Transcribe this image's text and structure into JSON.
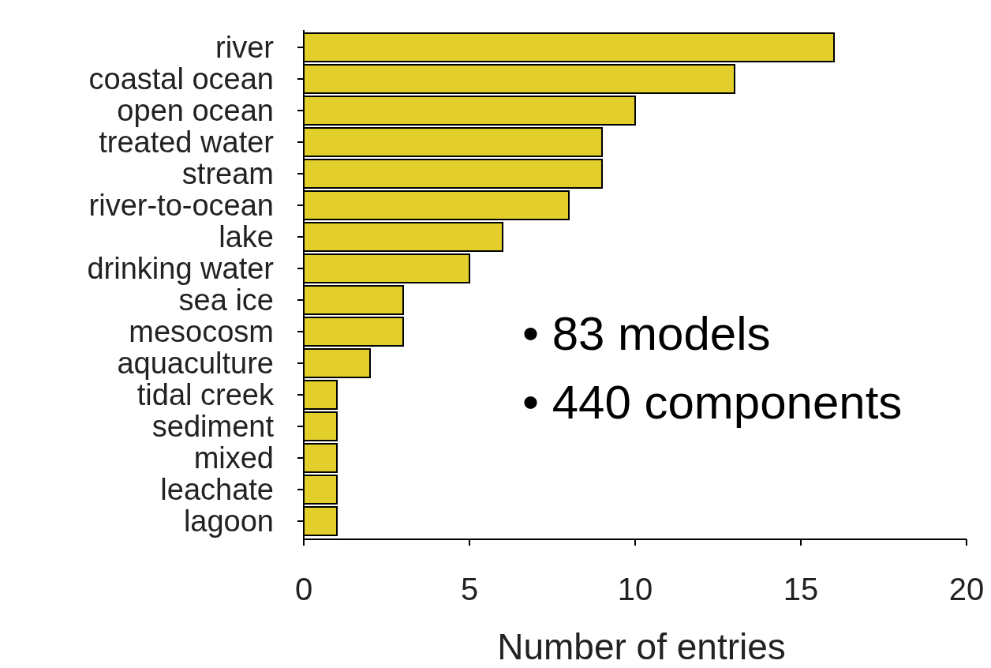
{
  "chart_data": {
    "type": "bar",
    "orientation": "horizontal",
    "xlabel": "Number of entries",
    "categories": [
      "river",
      "coastal ocean",
      "open ocean",
      "treated water",
      "stream",
      "river-to-ocean",
      "lake",
      "drinking water",
      "sea ice",
      "mesocosm",
      "aquaculture",
      "tidal creek",
      "sediment",
      "mixed",
      "leachate",
      "lagoon"
    ],
    "values": [
      16,
      13,
      10,
      9,
      9,
      8,
      6,
      5,
      3,
      3,
      2,
      1,
      1,
      1,
      1,
      1
    ],
    "color": "#e3cf2b",
    "xlim": [
      0,
      20
    ],
    "xticks": [
      0,
      5,
      10,
      15,
      20
    ],
    "grid": false,
    "annotations": [
      "• 83 models",
      "• 440 components"
    ]
  }
}
